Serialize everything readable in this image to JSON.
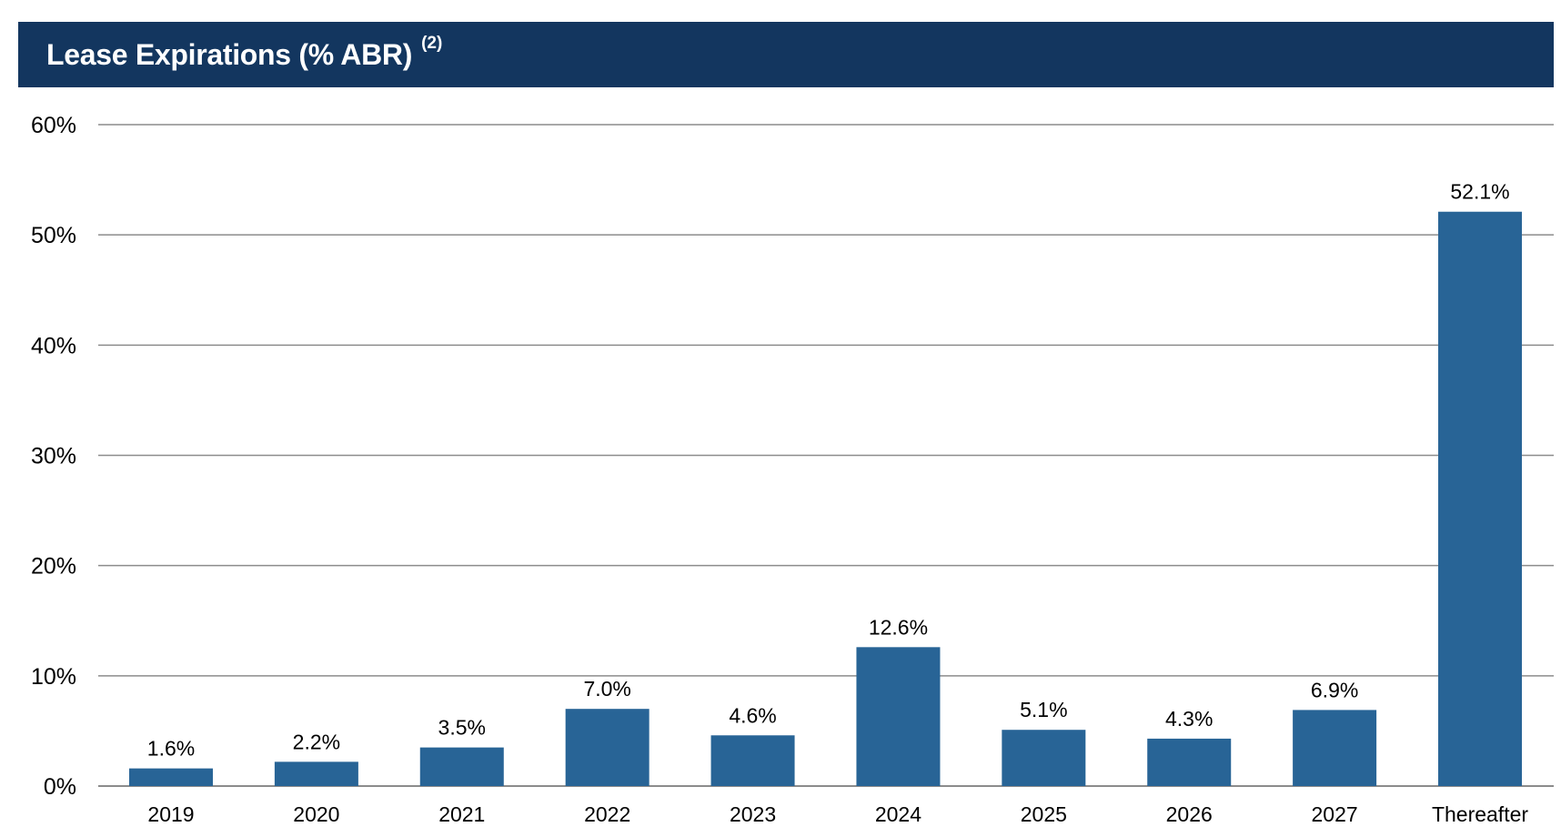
{
  "header": {
    "title": "Lease Expirations (% ABR)",
    "title_superscript": "(2)"
  },
  "colors": {
    "header_background": "#13365f",
    "bar": "#286496",
    "grid": "#8c8c8c"
  },
  "chart_data": {
    "type": "bar",
    "title": "Lease Expirations (% ABR)",
    "xlabel": "",
    "ylabel": "",
    "categories": [
      "2019",
      "2020",
      "2021",
      "2022",
      "2023",
      "2024",
      "2025",
      "2026",
      "2027",
      "Thereafter"
    ],
    "values": [
      1.6,
      2.2,
      3.5,
      7.0,
      4.6,
      12.6,
      5.1,
      4.3,
      6.9,
      52.1
    ],
    "data_labels": [
      "1.6%",
      "2.2%",
      "3.5%",
      "7.0%",
      "4.6%",
      "12.6%",
      "5.1%",
      "4.3%",
      "6.9%",
      "52.1%"
    ],
    "ylim": [
      0,
      60
    ],
    "yticks": [
      0,
      10,
      20,
      30,
      40,
      50,
      60
    ],
    "ytick_labels": [
      "0%",
      "10%",
      "20%",
      "30%",
      "40%",
      "50%",
      "60%"
    ],
    "grid": true,
    "legend": "none"
  }
}
